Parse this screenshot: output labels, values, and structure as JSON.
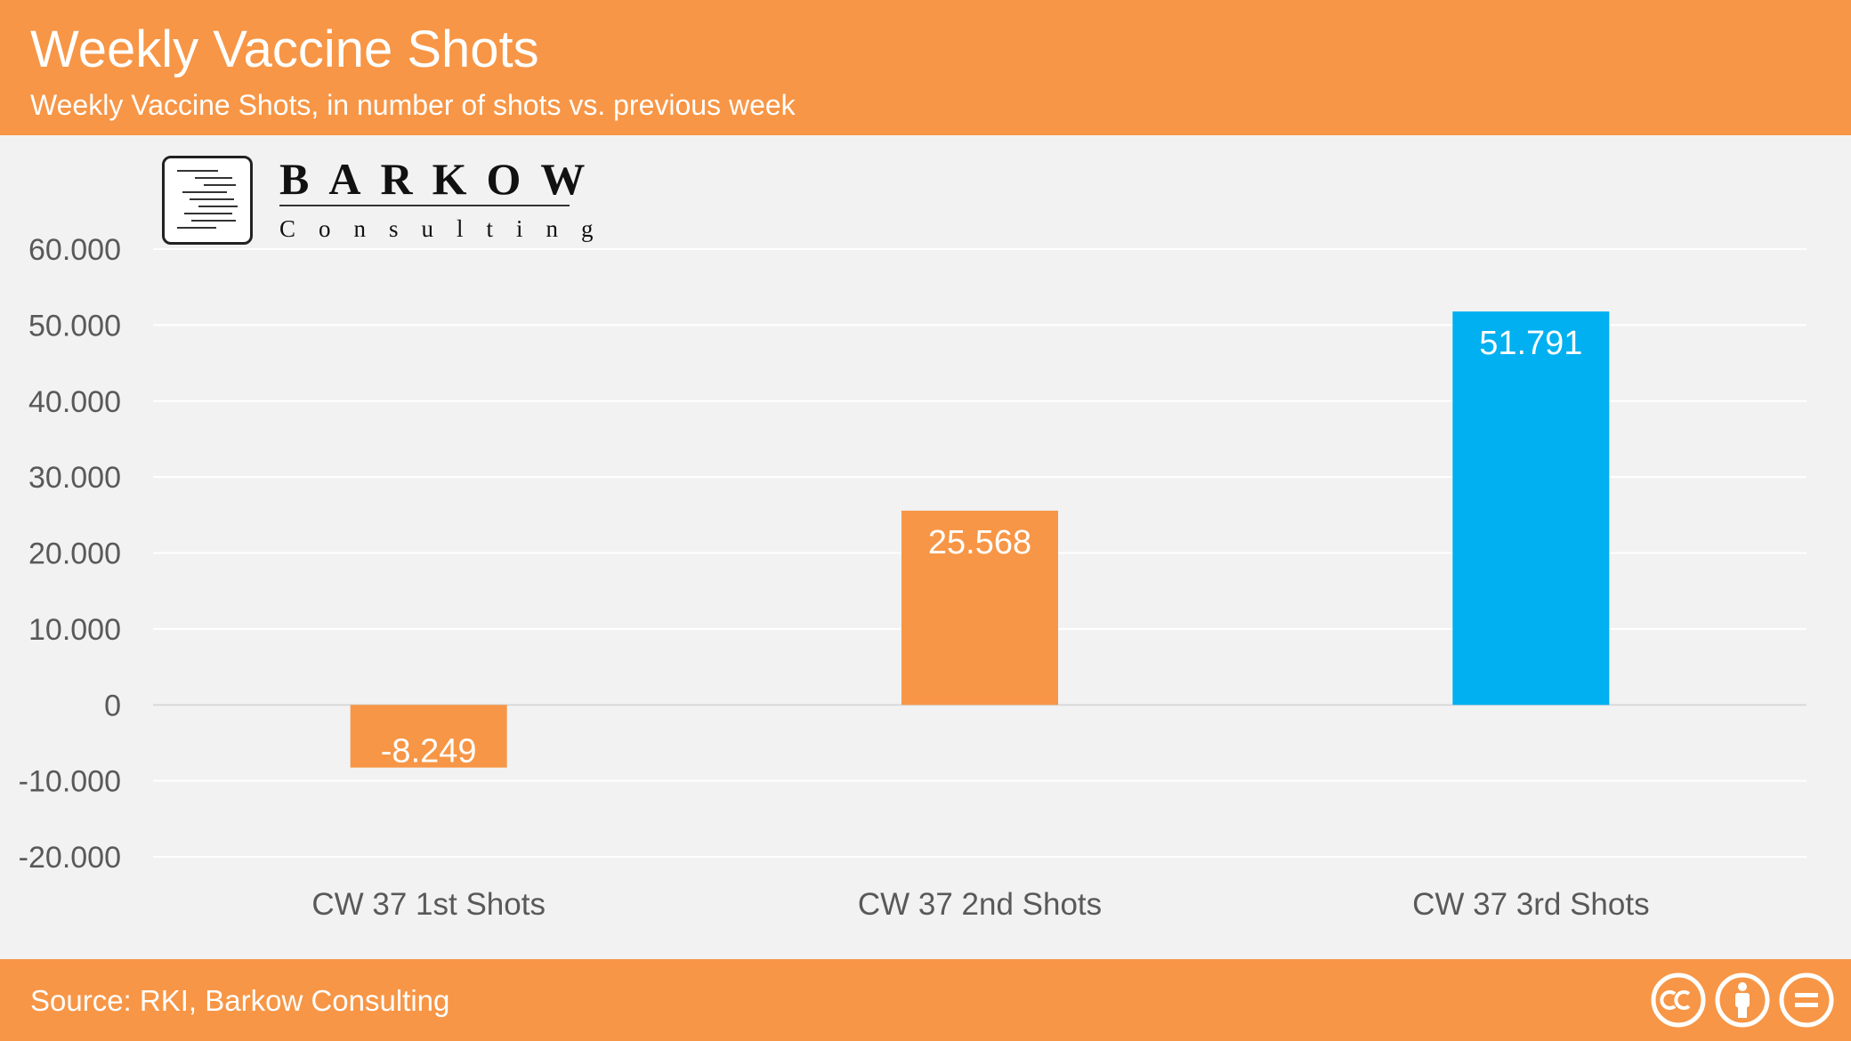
{
  "header": {
    "title": "Weekly Vaccine Shots",
    "subtitle": "Weekly Vaccine Shots, in number of shots vs. previous week"
  },
  "logo": {
    "name": "BARKOW",
    "tagline": "Consulting"
  },
  "footer": {
    "source": "Source: RKI, Barkow Consulting",
    "license_icons": [
      "cc-icon",
      "attribution-icon",
      "no-derivatives-icon"
    ]
  },
  "colors": {
    "header_bg": "#f79646",
    "bar_default": "#f79646",
    "bar_highlight": "#00b0f0",
    "gridline": "#ffffff",
    "axis_text": "#595959"
  },
  "chart_data": {
    "type": "bar",
    "categories": [
      "CW 37 1st Shots",
      "CW 37 2nd Shots",
      "CW 37 3rd Shots"
    ],
    "values": [
      -8249,
      25568,
      51791
    ],
    "data_labels": [
      "-8.249",
      "25.568",
      "51.791"
    ],
    "bar_colors": [
      "#f79646",
      "#f79646",
      "#00b0f0"
    ],
    "ylim": [
      -20000,
      60000
    ],
    "yticks": [
      -20000,
      -10000,
      0,
      10000,
      20000,
      30000,
      40000,
      50000,
      60000
    ],
    "ytick_labels": [
      "-20.000",
      "-10.000",
      "0",
      "10.000",
      "20.000",
      "30.000",
      "40.000",
      "50.000",
      "60.000"
    ],
    "grid": true,
    "xlabel": "",
    "ylabel": ""
  }
}
